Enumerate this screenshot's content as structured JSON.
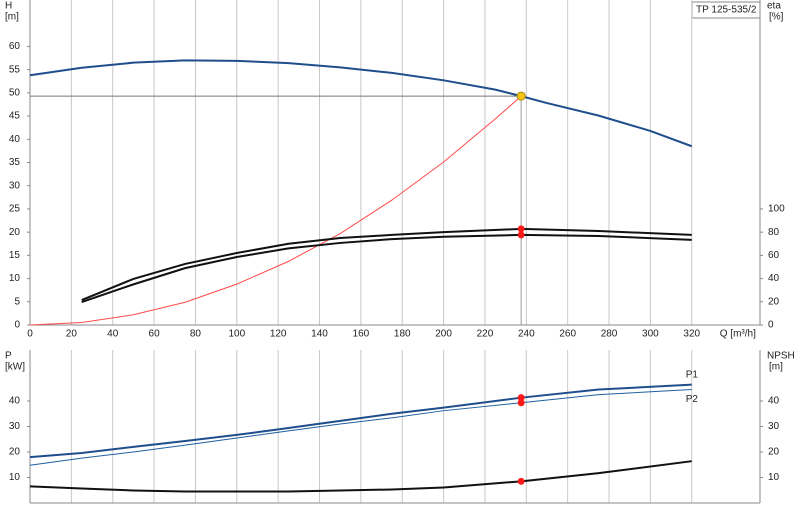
{
  "chart_data": [
    {
      "type": "line",
      "title": "TP 125-535/2",
      "x_label": "Q [m³/h]",
      "y_label": "H",
      "y_unit": "[m]",
      "y2_label": "eta",
      "y2_unit": "[%]",
      "xlim": [
        0,
        353
      ],
      "xticks": [
        0,
        20,
        40,
        60,
        80,
        100,
        120,
        140,
        160,
        180,
        200,
        220,
        240,
        260,
        280,
        300,
        320
      ],
      "ylim": [
        0,
        70
      ],
      "yticks": [
        0,
        5,
        10,
        15,
        20,
        25,
        30,
        35,
        40,
        45,
        50,
        55,
        60
      ],
      "y2lim": [
        0,
        280
      ],
      "y2ticks": [
        0,
        20,
        40,
        60,
        80,
        100
      ],
      "show_xtick_labels": true,
      "grid": "vertical",
      "duty_point": {
        "x": 237.5,
        "y": 49.3,
        "color": "#f5c518"
      },
      "point_color": "#ff1a1a",
      "series": [
        {
          "color": "#1f4e8c",
          "line_width": 2,
          "x": [
            0,
            25,
            50,
            75,
            100,
            125,
            150,
            175,
            200,
            225,
            237.5,
            250,
            275,
            300,
            320
          ],
          "values": [
            53.8,
            55.4,
            56.5,
            57,
            56.9,
            56.4,
            55.5,
            54.3,
            52.7,
            50.7,
            49.3,
            47.8,
            45.1,
            41.8,
            38.5
          ]
        },
        {
          "color": "#ff4a4a",
          "line_width": 1,
          "x": [
            0,
            25,
            50,
            75,
            100,
            125,
            150,
            175,
            200,
            225,
            237.5
          ],
          "values": [
            0,
            0.55,
            2.2,
            4.9,
            8.8,
            13.7,
            19.7,
            26.9,
            35.1,
            44.4,
            49.3
          ]
        },
        {
          "color": "#111111",
          "line_width": 2,
          "axis": "y2",
          "x": [
            25,
            50,
            75,
            100,
            125,
            150,
            175,
            200,
            237.5,
            275,
            320
          ],
          "values": [
            21.5,
            39.7,
            52.6,
            62,
            70,
            75,
            77.6,
            80,
            82.8,
            81,
            77.6
          ]
        },
        {
          "color": "#111111",
          "line_width": 2,
          "axis": "y2",
          "x": [
            25,
            50,
            75,
            100,
            125,
            150,
            175,
            200,
            237.5,
            275,
            320
          ],
          "values": [
            19.8,
            35,
            49,
            58.6,
            66,
            70.7,
            74,
            76,
            77.6,
            76.7,
            73.3
          ]
        }
      ]
    },
    {
      "type": "line",
      "y_label": "P",
      "y_unit": "[kW]",
      "y2_label": "NPSH",
      "y2_unit": "[m]",
      "xlim": [
        0,
        353
      ],
      "xticks": [
        0,
        20,
        40,
        60,
        80,
        100,
        120,
        140,
        160,
        180,
        200,
        220,
        240,
        260,
        280,
        300,
        320
      ],
      "ylim": [
        0,
        60
      ],
      "yticks": [
        10,
        20,
        30,
        40
      ],
      "y2lim": [
        0,
        60
      ],
      "y2ticks": [
        10,
        20,
        30,
        40
      ],
      "show_xtick_labels": false,
      "grid": "vertical",
      "duty_point": {
        "x": 237.5
      },
      "point_color": "#ff1a1a",
      "series": [
        {
          "name": "P1",
          "color": "#1f4e8c",
          "line_width": 2,
          "x": [
            0,
            25,
            50,
            75,
            100,
            125,
            150,
            175,
            200,
            237.5,
            275,
            320
          ],
          "values": [
            18,
            19.6,
            22,
            24.3,
            26.7,
            29.4,
            32.2,
            35,
            37.4,
            41.3,
            44.5,
            46.4
          ]
        },
        {
          "name": "P2",
          "color": "#1f5fa0",
          "line_width": 1,
          "x": [
            0,
            25,
            50,
            75,
            100,
            125,
            150,
            175,
            200,
            237.5,
            275,
            320
          ],
          "values": [
            14.8,
            17.6,
            20,
            22.7,
            25.5,
            28.3,
            31,
            33.4,
            36.2,
            39.3,
            42.5,
            44.5
          ]
        },
        {
          "color": "#111111",
          "line_width": 2,
          "axis": "y2",
          "x": [
            0,
            25,
            50,
            75,
            100,
            125,
            150,
            175,
            200,
            237.5,
            275,
            320
          ],
          "values": [
            6.5,
            5.7,
            4.9,
            4.5,
            4.5,
            4.5,
            4.9,
            5.3,
            6.1,
            8.5,
            11.7,
            16.4
          ]
        }
      ]
    }
  ]
}
